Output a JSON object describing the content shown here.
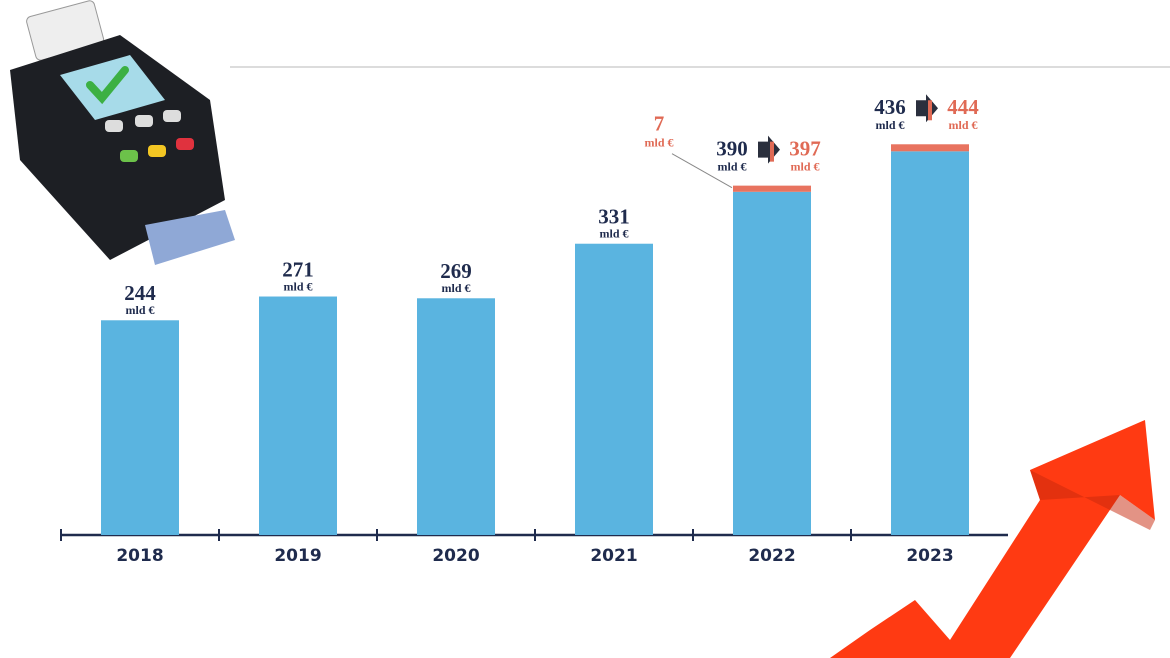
{
  "chart_data": {
    "type": "bar",
    "categories": [
      "2018",
      "2019",
      "2020",
      "2021",
      "2022",
      "2023"
    ],
    "series": [
      {
        "color": "#5ab4e0",
        "values": [
          244,
          271,
          269,
          331,
          390,
          436
        ]
      },
      {
        "color": "#e8735f",
        "values": [
          null,
          null,
          null,
          null,
          7,
          8
        ],
        "value_labels": [
          null,
          null,
          null,
          null,
          "7",
          null
        ]
      }
    ],
    "totals": [
      null,
      null,
      null,
      null,
      397,
      444
    ],
    "unit": "mld €",
    "ylim": [
      0,
      500
    ]
  }
}
